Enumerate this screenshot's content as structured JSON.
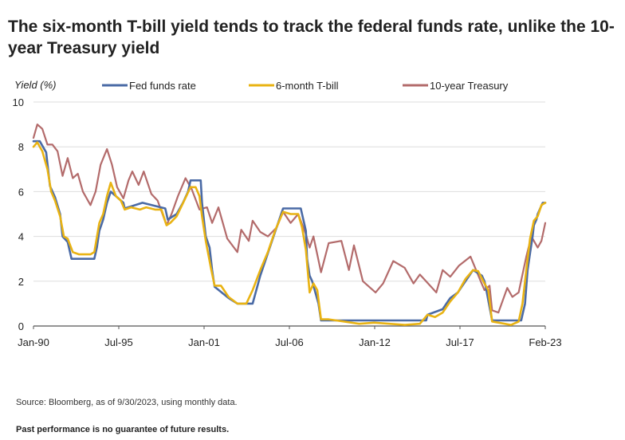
{
  "title": "The six-month T-bill yield tends to track the federal funds rate, unlike the 10-year Treasury yield",
  "source": "Source: Bloomberg, as of 9/30/2023, using monthly data.",
  "disclaimer": "Past performance is no guarantee of future results.",
  "chart_data": {
    "type": "line",
    "title": "The six-month T-bill yield tends to track the federal funds rate, unlike the 10-year Treasury yield",
    "ylabel": "Yield (%)",
    "xlabel": "",
    "ylim": [
      0,
      10
    ],
    "yticks": [
      0,
      2,
      4,
      6,
      8,
      10
    ],
    "xticks": [
      "Jan-90",
      "Jul-95",
      "Jan-01",
      "Jul-06",
      "Jan-12",
      "Jul-17",
      "Feb-23"
    ],
    "x_range": [
      "1990-01",
      "2023-09"
    ],
    "grid": true,
    "legend_position": "top",
    "colors": {
      "fed": "#4a6aa5",
      "tbill": "#e9b313",
      "treasury": "#b36b6b"
    },
    "series": [
      {
        "name": "Fed funds rate",
        "key": "fed",
        "points": [
          [
            "1990-01",
            8.25
          ],
          [
            "1990-06",
            8.25
          ],
          [
            "1990-11",
            7.75
          ],
          [
            "1991-02",
            6.25
          ],
          [
            "1991-06",
            5.75
          ],
          [
            "1991-10",
            5.0
          ],
          [
            "1991-12",
            4.0
          ],
          [
            "1992-04",
            3.75
          ],
          [
            "1992-07",
            3.0
          ],
          [
            "1993-06",
            3.0
          ],
          [
            "1994-01",
            3.0
          ],
          [
            "1994-03",
            3.5
          ],
          [
            "1994-05",
            4.25
          ],
          [
            "1994-08",
            4.75
          ],
          [
            "1994-11",
            5.5
          ],
          [
            "1995-02",
            6.0
          ],
          [
            "1995-07",
            5.75
          ],
          [
            "1995-12",
            5.5
          ],
          [
            "1996-01",
            5.25
          ],
          [
            "1997-03",
            5.5
          ],
          [
            "1998-09",
            5.25
          ],
          [
            "1998-10",
            5.0
          ],
          [
            "1998-11",
            4.75
          ],
          [
            "1999-06",
            5.0
          ],
          [
            "1999-11",
            5.5
          ],
          [
            "2000-03",
            6.0
          ],
          [
            "2000-05",
            6.5
          ],
          [
            "2001-01",
            6.5
          ],
          [
            "2001-02",
            5.5
          ],
          [
            "2001-05",
            4.0
          ],
          [
            "2001-08",
            3.5
          ],
          [
            "2001-10",
            2.5
          ],
          [
            "2001-12",
            1.75
          ],
          [
            "2002-11",
            1.25
          ],
          [
            "2003-06",
            1.0
          ],
          [
            "2004-06",
            1.0
          ],
          [
            "2004-12",
            2.25
          ],
          [
            "2005-06",
            3.25
          ],
          [
            "2005-12",
            4.25
          ],
          [
            "2006-06",
            5.25
          ],
          [
            "2007-08",
            5.25
          ],
          [
            "2007-10",
            4.75
          ],
          [
            "2007-12",
            4.25
          ],
          [
            "2008-01",
            3.0
          ],
          [
            "2008-03",
            2.25
          ],
          [
            "2008-05",
            2.0
          ],
          [
            "2008-10",
            1.0
          ],
          [
            "2008-12",
            0.25
          ],
          [
            "2015-11",
            0.25
          ],
          [
            "2015-12",
            0.5
          ],
          [
            "2016-12",
            0.75
          ],
          [
            "2017-03",
            1.0
          ],
          [
            "2017-06",
            1.25
          ],
          [
            "2017-12",
            1.5
          ],
          [
            "2018-03",
            1.75
          ],
          [
            "2018-06",
            2.0
          ],
          [
            "2018-09",
            2.25
          ],
          [
            "2018-12",
            2.5
          ],
          [
            "2019-07",
            2.25
          ],
          [
            "2019-09",
            2.0
          ],
          [
            "2019-10",
            1.75
          ],
          [
            "2020-03",
            0.25
          ],
          [
            "2022-02",
            0.25
          ],
          [
            "2022-03",
            0.5
          ],
          [
            "2022-05",
            1.0
          ],
          [
            "2022-06",
            1.75
          ],
          [
            "2022-07",
            2.5
          ],
          [
            "2022-09",
            3.25
          ],
          [
            "2022-11",
            4.0
          ],
          [
            "2022-12",
            4.5
          ],
          [
            "2023-02",
            4.75
          ],
          [
            "2023-03",
            5.0
          ],
          [
            "2023-05",
            5.25
          ],
          [
            "2023-07",
            5.5
          ],
          [
            "2023-09",
            5.5
          ]
        ]
      },
      {
        "name": "6-month T-bill",
        "key": "tbill",
        "points": [
          [
            "1990-01",
            8.0
          ],
          [
            "1990-04",
            8.2
          ],
          [
            "1990-08",
            7.8
          ],
          [
            "1990-12",
            7.0
          ],
          [
            "1991-03",
            6.0
          ],
          [
            "1991-06",
            5.6
          ],
          [
            "1991-10",
            4.9
          ],
          [
            "1992-01",
            4.0
          ],
          [
            "1992-04",
            3.9
          ],
          [
            "1992-08",
            3.3
          ],
          [
            "1993-01",
            3.2
          ],
          [
            "1993-06",
            3.2
          ],
          [
            "1993-10",
            3.2
          ],
          [
            "1994-01",
            3.3
          ],
          [
            "1994-05",
            4.6
          ],
          [
            "1994-08",
            5.0
          ],
          [
            "1994-11",
            5.8
          ],
          [
            "1995-02",
            6.4
          ],
          [
            "1995-06",
            5.8
          ],
          [
            "1995-10",
            5.6
          ],
          [
            "1996-01",
            5.2
          ],
          [
            "1996-06",
            5.3
          ],
          [
            "1997-01",
            5.2
          ],
          [
            "1997-06",
            5.3
          ],
          [
            "1998-01",
            5.2
          ],
          [
            "1998-06",
            5.2
          ],
          [
            "1998-10",
            4.5
          ],
          [
            "1999-01",
            4.6
          ],
          [
            "1999-06",
            4.9
          ],
          [
            "1999-12",
            5.6
          ],
          [
            "2000-05",
            6.2
          ],
          [
            "2000-09",
            6.2
          ],
          [
            "2000-12",
            5.8
          ],
          [
            "2001-02",
            4.9
          ],
          [
            "2001-05",
            3.8
          ],
          [
            "2001-09",
            2.6
          ],
          [
            "2001-12",
            1.8
          ],
          [
            "2002-05",
            1.8
          ],
          [
            "2002-11",
            1.3
          ],
          [
            "2003-06",
            1.0
          ],
          [
            "2004-01",
            1.0
          ],
          [
            "2004-06",
            1.6
          ],
          [
            "2004-12",
            2.5
          ],
          [
            "2005-06",
            3.3
          ],
          [
            "2005-12",
            4.3
          ],
          [
            "2006-06",
            5.1
          ],
          [
            "2006-12",
            5.0
          ],
          [
            "2007-06",
            5.0
          ],
          [
            "2007-09",
            4.4
          ],
          [
            "2007-12",
            3.4
          ],
          [
            "2008-03",
            1.5
          ],
          [
            "2008-06",
            1.9
          ],
          [
            "2008-09",
            1.6
          ],
          [
            "2008-12",
            0.3
          ],
          [
            "2009-06",
            0.3
          ],
          [
            "2010-06",
            0.2
          ],
          [
            "2011-06",
            0.1
          ],
          [
            "2012-06",
            0.15
          ],
          [
            "2013-06",
            0.1
          ],
          [
            "2014-06",
            0.05
          ],
          [
            "2015-06",
            0.1
          ],
          [
            "2015-12",
            0.5
          ],
          [
            "2016-06",
            0.4
          ],
          [
            "2016-12",
            0.6
          ],
          [
            "2017-06",
            1.1
          ],
          [
            "2017-12",
            1.5
          ],
          [
            "2018-06",
            2.1
          ],
          [
            "2018-12",
            2.5
          ],
          [
            "2019-04",
            2.45
          ],
          [
            "2019-09",
            1.9
          ],
          [
            "2019-12",
            1.6
          ],
          [
            "2020-03",
            0.2
          ],
          [
            "2020-06",
            0.17
          ],
          [
            "2021-06",
            0.05
          ],
          [
            "2021-12",
            0.2
          ],
          [
            "2022-03",
            1.0
          ],
          [
            "2022-06",
            2.5
          ],
          [
            "2022-09",
            3.9
          ],
          [
            "2022-12",
            4.7
          ],
          [
            "2023-03",
            4.9
          ],
          [
            "2023-06",
            5.4
          ],
          [
            "2023-09",
            5.5
          ]
        ]
      },
      {
        "name": "10-year Treasury",
        "key": "treasury",
        "points": [
          [
            "1990-01",
            8.4
          ],
          [
            "1990-04",
            9.0
          ],
          [
            "1990-08",
            8.8
          ],
          [
            "1990-12",
            8.1
          ],
          [
            "1991-04",
            8.1
          ],
          [
            "1991-08",
            7.8
          ],
          [
            "1991-12",
            6.7
          ],
          [
            "1992-04",
            7.5
          ],
          [
            "1992-08",
            6.6
          ],
          [
            "1992-12",
            6.8
          ],
          [
            "1993-04",
            6.0
          ],
          [
            "1993-10",
            5.4
          ],
          [
            "1994-02",
            6.0
          ],
          [
            "1994-06",
            7.2
          ],
          [
            "1994-11",
            7.9
          ],
          [
            "1995-03",
            7.2
          ],
          [
            "1995-07",
            6.2
          ],
          [
            "1995-12",
            5.7
          ],
          [
            "1996-04",
            6.5
          ],
          [
            "1996-07",
            6.9
          ],
          [
            "1996-12",
            6.3
          ],
          [
            "1997-04",
            6.9
          ],
          [
            "1997-10",
            5.9
          ],
          [
            "1998-03",
            5.6
          ],
          [
            "1998-10",
            4.5
          ],
          [
            "1999-02",
            5.0
          ],
          [
            "1999-07",
            5.8
          ],
          [
            "2000-01",
            6.6
          ],
          [
            "2000-06",
            6.1
          ],
          [
            "2000-12",
            5.2
          ],
          [
            "2001-06",
            5.3
          ],
          [
            "2001-10",
            4.6
          ],
          [
            "2002-03",
            5.3
          ],
          [
            "2002-10",
            3.9
          ],
          [
            "2003-06",
            3.3
          ],
          [
            "2003-09",
            4.3
          ],
          [
            "2004-03",
            3.8
          ],
          [
            "2004-06",
            4.7
          ],
          [
            "2004-12",
            4.2
          ],
          [
            "2005-06",
            4.0
          ],
          [
            "2006-01",
            4.4
          ],
          [
            "2006-06",
            5.1
          ],
          [
            "2006-12",
            4.6
          ],
          [
            "2007-06",
            5.0
          ],
          [
            "2007-12",
            4.1
          ],
          [
            "2008-03",
            3.5
          ],
          [
            "2008-06",
            4.0
          ],
          [
            "2008-12",
            2.4
          ],
          [
            "2009-06",
            3.7
          ],
          [
            "2010-04",
            3.8
          ],
          [
            "2010-10",
            2.5
          ],
          [
            "2011-02",
            3.6
          ],
          [
            "2011-09",
            2.0
          ],
          [
            "2012-07",
            1.5
          ],
          [
            "2013-01",
            1.9
          ],
          [
            "2013-09",
            2.9
          ],
          [
            "2014-06",
            2.6
          ],
          [
            "2015-01",
            1.9
          ],
          [
            "2015-06",
            2.3
          ],
          [
            "2016-07",
            1.5
          ],
          [
            "2016-12",
            2.5
          ],
          [
            "2017-06",
            2.2
          ],
          [
            "2018-01",
            2.7
          ],
          [
            "2018-10",
            3.1
          ],
          [
            "2019-06",
            2.0
          ],
          [
            "2019-09",
            1.6
          ],
          [
            "2020-01",
            1.8
          ],
          [
            "2020-03",
            0.7
          ],
          [
            "2020-08",
            0.6
          ],
          [
            "2021-03",
            1.7
          ],
          [
            "2021-07",
            1.3
          ],
          [
            "2021-12",
            1.5
          ],
          [
            "2022-06",
            3.1
          ],
          [
            "2022-10",
            4.0
          ],
          [
            "2023-03",
            3.5
          ],
          [
            "2023-06",
            3.8
          ],
          [
            "2023-09",
            4.6
          ]
        ]
      }
    ]
  }
}
